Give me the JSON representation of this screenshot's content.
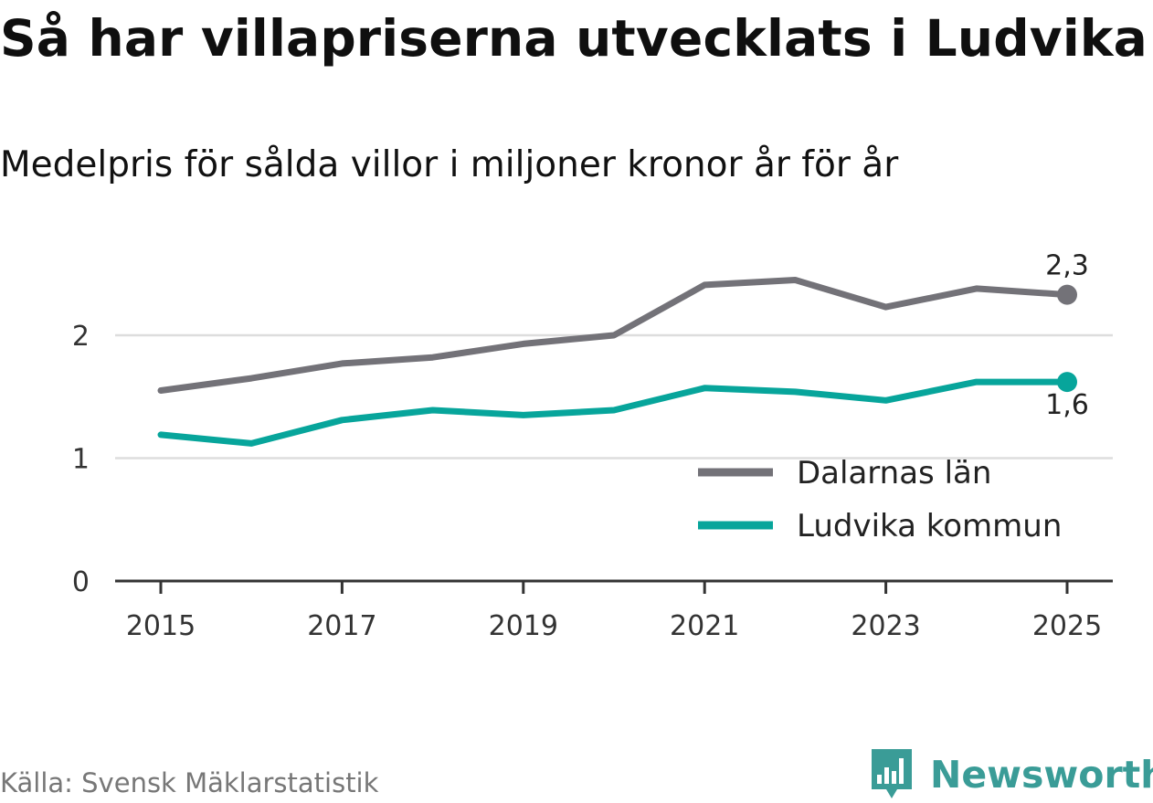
{
  "header": {
    "title": "Så har villapriserna utvecklats i Ludvika",
    "subtitle": "Medelpris för sålda villor i miljoner kronor år för år"
  },
  "footer": {
    "source": "Källa: Svensk Mäklarstatistik",
    "brand": "Newsworthy"
  },
  "colors": {
    "dalarna": "#737278",
    "ludvika": "#07a59b",
    "grid": "#dddddd",
    "axis": "#333333",
    "brand": "#3a9c97"
  },
  "chart_data": {
    "type": "line",
    "title": "Så har villapriserna utvecklats i Ludvika",
    "subtitle": "Medelpris för sålda villor i miljoner kronor år för år",
    "xlabel": "",
    "ylabel": "",
    "x": [
      2015,
      2016,
      2017,
      2018,
      2019,
      2020,
      2021,
      2022,
      2023,
      2024,
      2025
    ],
    "x_ticks": [
      "2015",
      "2017",
      "2019",
      "2021",
      "2023",
      "2025"
    ],
    "y_ticks": [
      "0",
      "1",
      "2"
    ],
    "ylim": [
      0,
      2.6
    ],
    "grid": "horizontal",
    "legend_position": "bottom-right",
    "series": [
      {
        "name": "Dalarnas län",
        "values": [
          1.55,
          1.65,
          1.77,
          1.82,
          1.93,
          2.0,
          2.41,
          2.45,
          2.23,
          2.38,
          2.33
        ],
        "end_label": "2,3"
      },
      {
        "name": "Ludvika kommun",
        "values": [
          1.19,
          1.12,
          1.31,
          1.39,
          1.35,
          1.39,
          1.57,
          1.54,
          1.47,
          1.62,
          1.62
        ],
        "end_label": "1,6"
      }
    ]
  }
}
